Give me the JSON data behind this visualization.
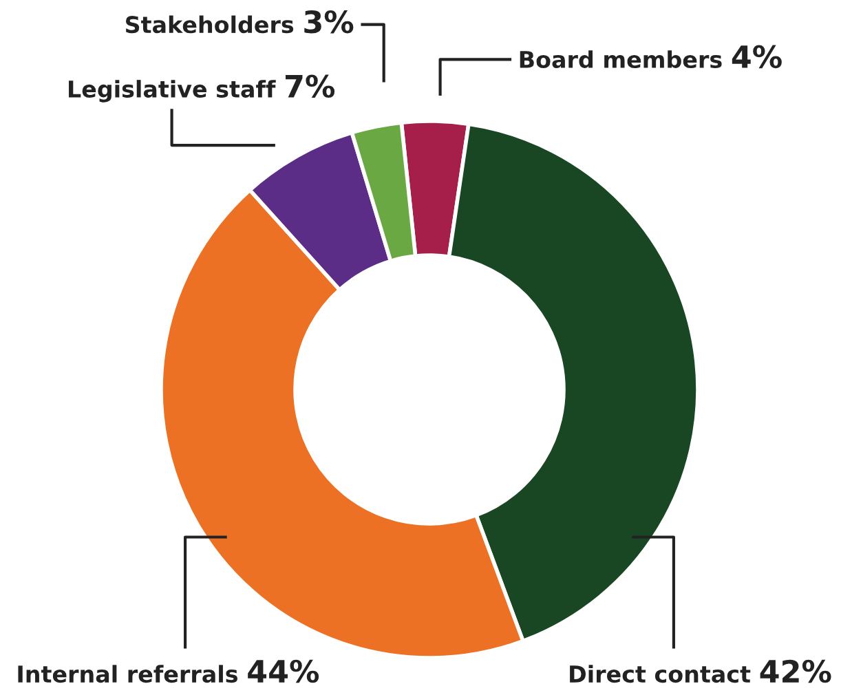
{
  "chart_data": {
    "type": "donut",
    "categories": [
      "Board members",
      "Direct contact",
      "Internal referrals",
      "Legislative staff",
      "Stakeholders"
    ],
    "values": [
      4,
      42,
      44,
      7,
      3
    ],
    "value_labels": [
      "4%",
      "42%",
      "44%",
      "7%",
      "3%"
    ],
    "colors": [
      "#a51f4a",
      "#1a4723",
      "#ec7124",
      "#5c2d87",
      "#6aa843"
    ],
    "legend": false
  }
}
